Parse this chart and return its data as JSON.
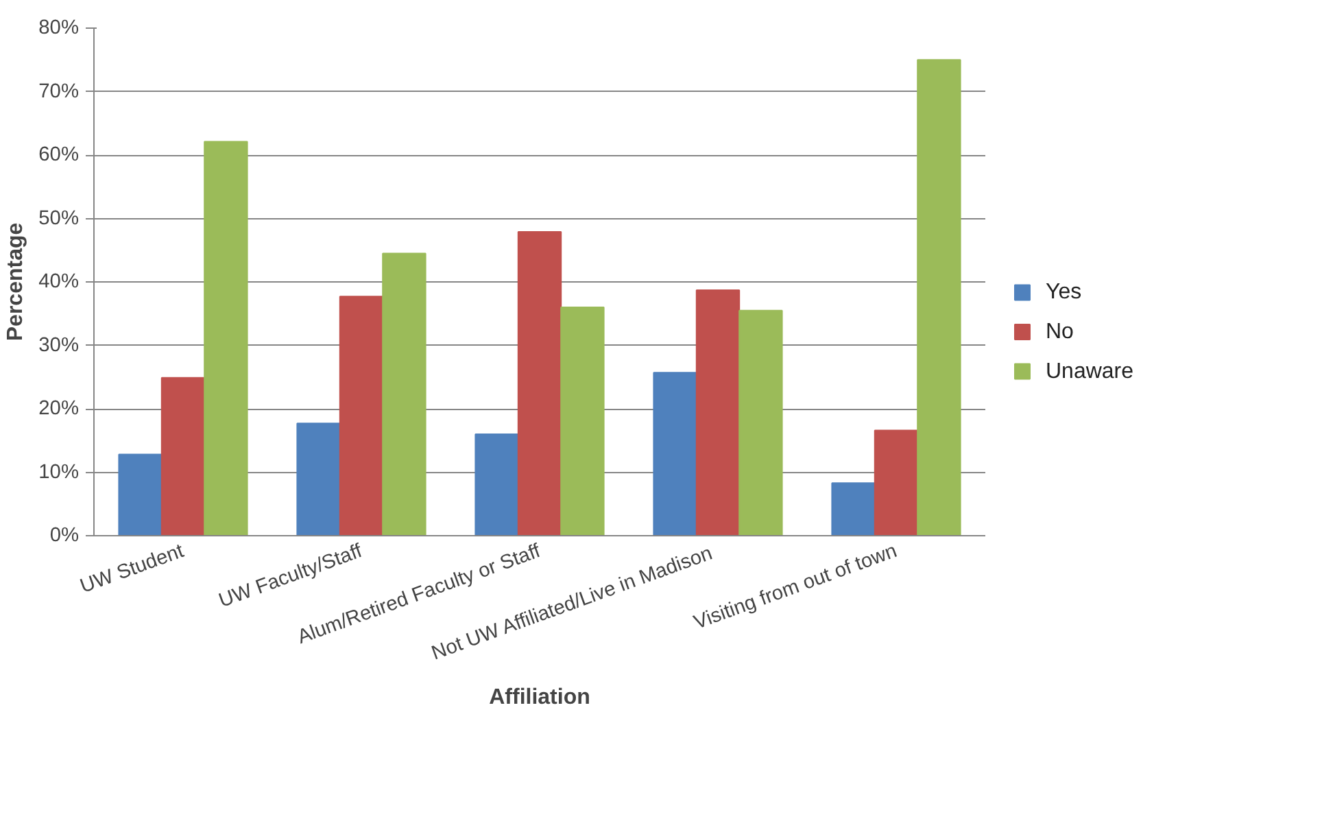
{
  "chart_data": {
    "type": "bar",
    "xlabel": "Affiliation",
    "ylabel": "Percentage",
    "categories": [
      "UW Student",
      "UW Faculty/Staff",
      "Alum/Retired Faculty or Staff",
      "Not UW  Affiliated/Live in Madison",
      "Visiting from out of town"
    ],
    "series": [
      {
        "name": "Yes",
        "color": "#4f81bd",
        "values": [
          12.8,
          17.7,
          16.0,
          25.7,
          8.3
        ]
      },
      {
        "name": "No",
        "color": "#c0504d",
        "values": [
          24.9,
          37.7,
          47.9,
          38.7,
          16.6
        ]
      },
      {
        "name": "Unaware",
        "color": "#9bbb59",
        "values": [
          62.1,
          44.5,
          36.0,
          35.5,
          75.0
        ]
      }
    ],
    "ylim": [
      0,
      80
    ],
    "yticks": [
      {
        "value": 0,
        "label": "0%"
      },
      {
        "value": 10,
        "label": "10%"
      },
      {
        "value": 20,
        "label": "20%"
      },
      {
        "value": 30,
        "label": "30%"
      },
      {
        "value": 40,
        "label": "40%"
      },
      {
        "value": 50,
        "label": "50%"
      },
      {
        "value": 60,
        "label": "60%"
      },
      {
        "value": 70,
        "label": "70%"
      },
      {
        "value": 80,
        "label": "80%"
      }
    ],
    "grid": "y",
    "legend": "right"
  }
}
